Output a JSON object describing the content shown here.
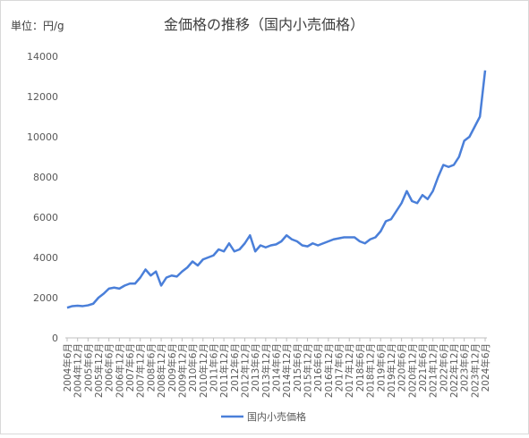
{
  "chart_data": {
    "type": "line",
    "title": "金価格の推移（国内小売価格）",
    "unit_label": "単位：円/g",
    "categories": [
      "2004年6月",
      null,
      "2004年12月",
      null,
      "2005年6月",
      null,
      "2005年12月",
      null,
      "2006年6月",
      null,
      "2006年12月",
      null,
      "2007年6月",
      null,
      "2007年12月",
      null,
      "2008年6月",
      null,
      "2008年12月",
      null,
      "2009年6月",
      null,
      "2009年12月",
      null,
      "2010年6月",
      null,
      "2010年12月",
      null,
      "2011年6月",
      null,
      "2011年12月",
      null,
      "2012年6月",
      null,
      "2012年12月",
      null,
      "2013年6月",
      null,
      "2013年12月",
      null,
      "2014年6月",
      null,
      "2014年12月",
      null,
      "2015年6月",
      null,
      "2015年12月",
      null,
      "2016年6月",
      null,
      "2016年12月",
      null,
      "2017年6月",
      null,
      "2017年12月",
      null,
      "2018年6月",
      null,
      "2018年12月",
      null,
      "2019年6月",
      null,
      "2019年12月",
      null,
      "2020年6月",
      null,
      "2020年12月",
      null,
      "2021年6月",
      null,
      "2021年12月",
      null,
      "2022年6月",
      null,
      "2022年12月",
      null,
      "2023年6月",
      null,
      "2023年12月",
      null,
      "2024年6月"
    ],
    "series": [
      {
        "name": "国内小売価格",
        "color": "#4a7fd9",
        "values": [
          1500,
          1580,
          1600,
          1580,
          1620,
          1700,
          2000,
          2200,
          2450,
          2500,
          2450,
          2600,
          2700,
          2700,
          3000,
          3400,
          3100,
          3300,
          2600,
          3000,
          3100,
          3050,
          3300,
          3500,
          3800,
          3600,
          3900,
          4000,
          4100,
          4400,
          4300,
          4700,
          4300,
          4400,
          4700,
          5100,
          4300,
          4600,
          4500,
          4600,
          4650,
          4800,
          5100,
          4900,
          4800,
          4600,
          4550,
          4700,
          4600,
          4700,
          4800,
          4900,
          4950,
          5000,
          5000,
          5000,
          4800,
          4700,
          4900,
          5000,
          5300,
          5800,
          5900,
          6300,
          6700,
          7300,
          6800,
          6700,
          7100,
          6900,
          7300,
          8000,
          8600,
          8500,
          8600,
          9000,
          9800,
          10000,
          10500,
          11000,
          13300
        ]
      }
    ],
    "ylim": [
      0,
      14000
    ],
    "yticks": [
      0,
      2000,
      4000,
      6000,
      8000,
      10000,
      12000,
      14000
    ],
    "grid": false,
    "legend": "bottom"
  }
}
